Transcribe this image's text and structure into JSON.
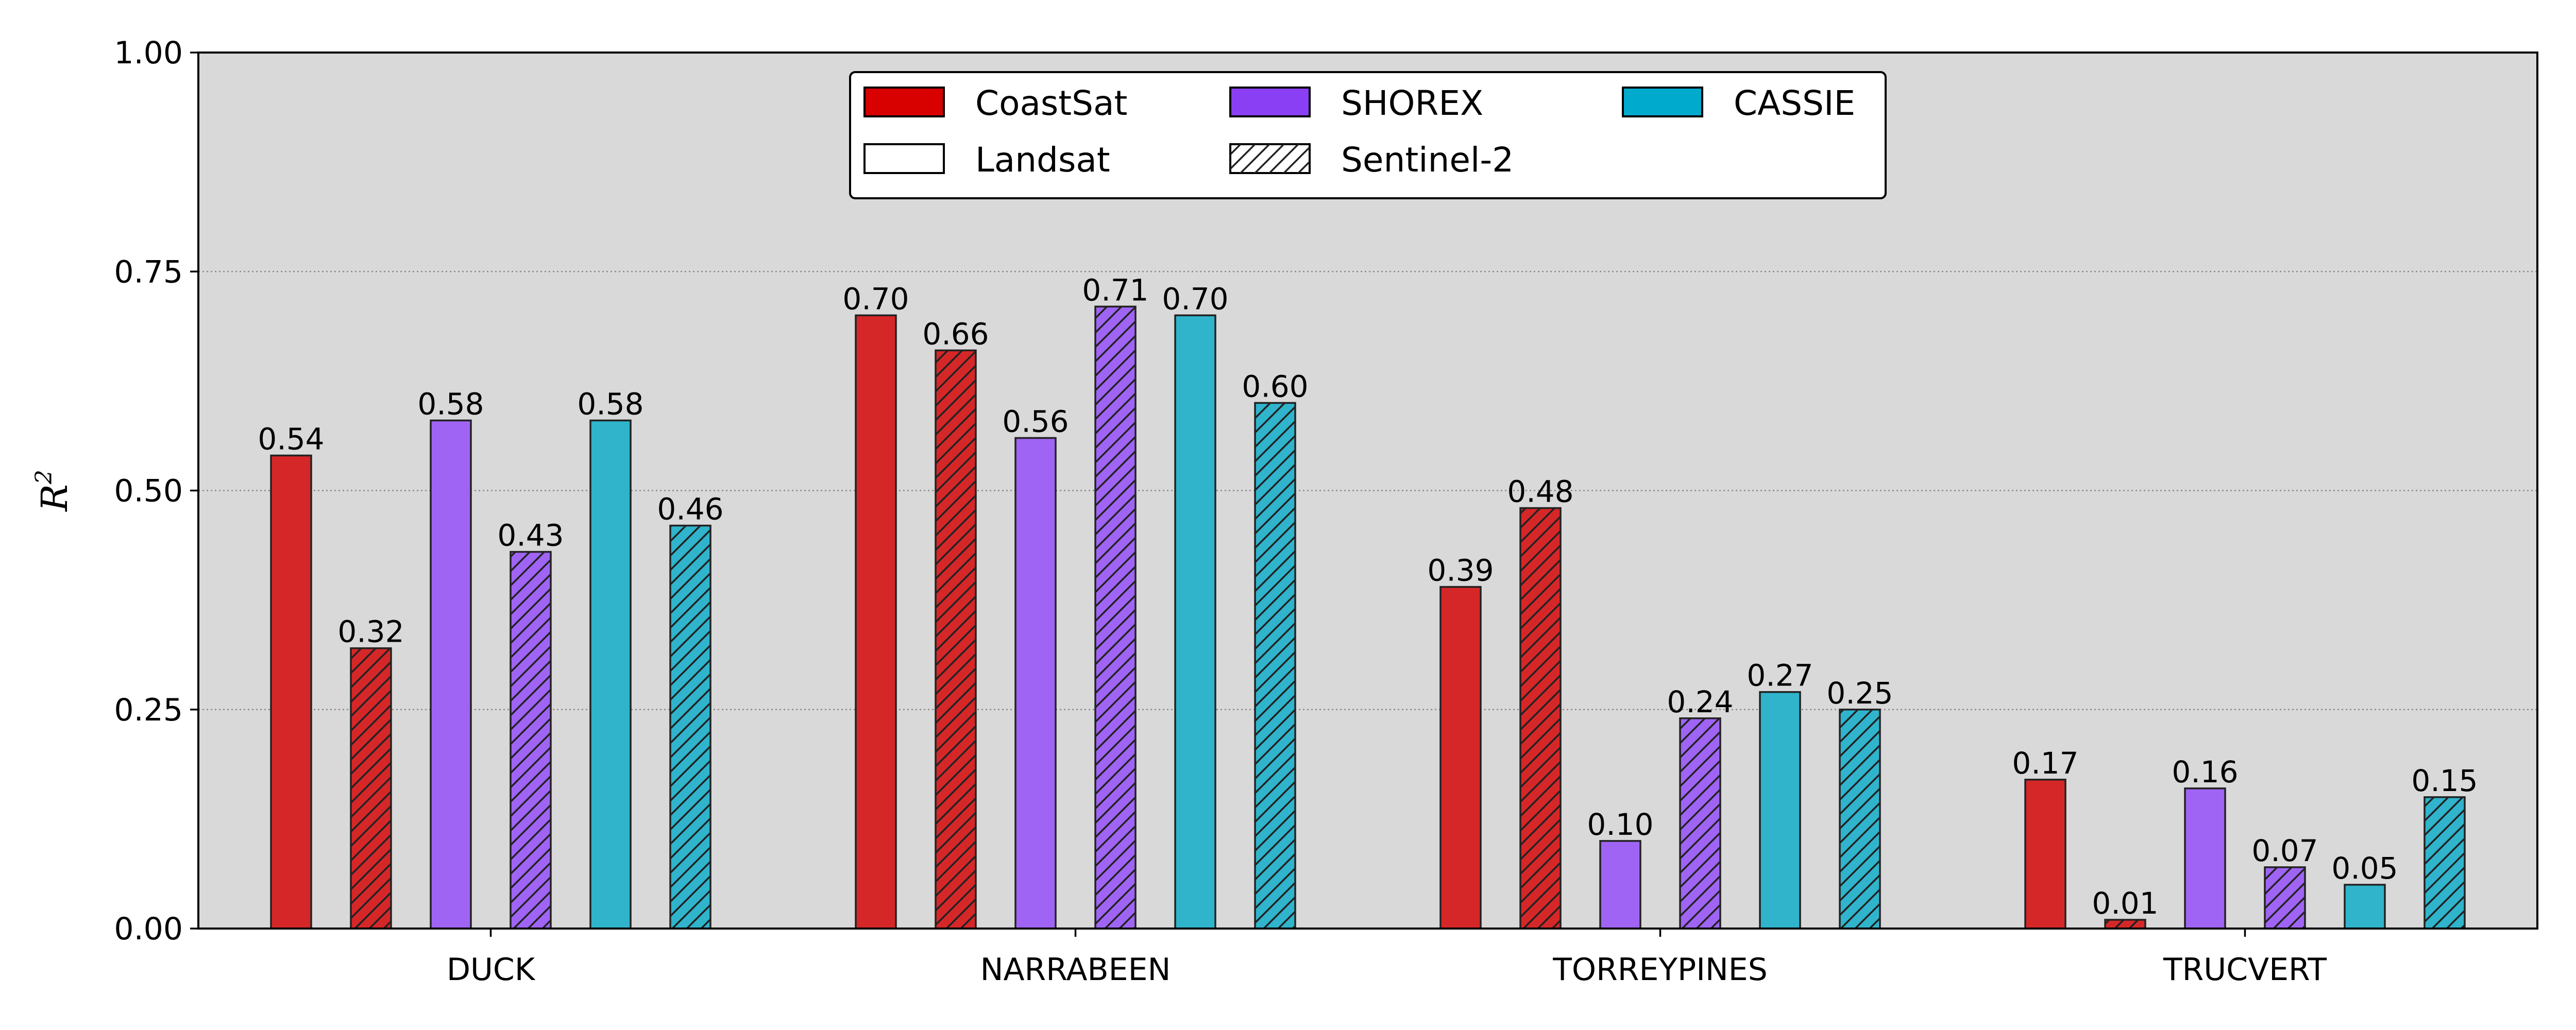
{
  "chart_data": {
    "type": "bar",
    "categories": [
      "DUCK",
      "NARRABEEN",
      "TORREYPINES",
      "TRUCVERT"
    ],
    "ylabel": "R",
    "ylabel_superscript": "2",
    "ylim": [
      0,
      1.0
    ],
    "yticks": [
      "0.00",
      "0.25",
      "0.50",
      "0.75",
      "1.00"
    ],
    "grid": "horizontal dotted",
    "legend_placement": "top-center",
    "background_color": "#d9d9d9",
    "series": [
      {
        "name": "CoastSat",
        "sensor": "Landsat",
        "color": "#d62728",
        "hatch": false,
        "values": [
          0.54,
          0.7,
          0.39,
          0.17
        ],
        "labels": [
          "0.54",
          "0.70",
          "0.39",
          "0.17"
        ]
      },
      {
        "name": "CoastSat",
        "sensor": "Sentinel-2",
        "color": "#d62728",
        "hatch": true,
        "values": [
          0.32,
          0.66,
          0.48,
          0.01
        ],
        "labels": [
          "0.32",
          "0.66",
          "0.48",
          "0.01"
        ]
      },
      {
        "name": "SHOREX",
        "sensor": "Landsat",
        "color": "#a064f5",
        "hatch": false,
        "values": [
          0.58,
          0.56,
          0.1,
          0.16
        ],
        "labels": [
          "0.58",
          "0.56",
          "0.10",
          "0.16"
        ]
      },
      {
        "name": "SHOREX",
        "sensor": "Sentinel-2",
        "color": "#a064f5",
        "hatch": true,
        "values": [
          0.43,
          0.71,
          0.24,
          0.07
        ],
        "labels": [
          "0.43",
          "0.71",
          "0.24",
          "0.07"
        ]
      },
      {
        "name": "CASSIE",
        "sensor": "Landsat",
        "color": "#30b4cc",
        "hatch": false,
        "values": [
          0.58,
          0.7,
          0.27,
          0.05
        ],
        "labels": [
          "0.58",
          "0.70",
          "0.27",
          "0.05"
        ]
      },
      {
        "name": "CASSIE",
        "sensor": "Sentinel-2",
        "color": "#30b4cc",
        "hatch": true,
        "values": [
          0.46,
          0.6,
          0.25,
          0.15
        ],
        "labels": [
          "0.46",
          "0.60",
          "0.25",
          "0.15"
        ]
      }
    ],
    "legend": [
      {
        "label": "CoastSat",
        "color": "#d90000",
        "hatch": false
      },
      {
        "label": "SHOREX",
        "color": "#8a3ff5",
        "hatch": false
      },
      {
        "label": "CASSIE",
        "color": "#00aacc",
        "hatch": false
      },
      {
        "label": "Landsat",
        "color": "#ffffff",
        "hatch": false
      },
      {
        "label": "Sentinel-2",
        "color": "#ffffff",
        "hatch": true
      }
    ]
  }
}
